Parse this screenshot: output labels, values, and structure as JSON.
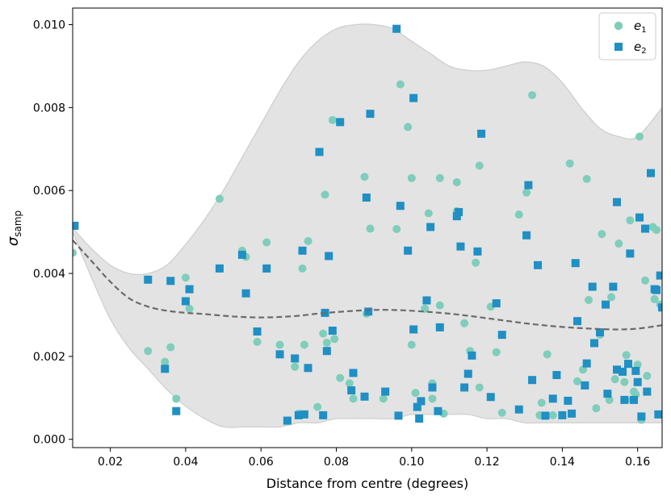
{
  "chart_data": {
    "type": "scatter",
    "xlabel": "Distance from centre (degrees)",
    "ylabel": {
      "main": "σ",
      "sub": "samp"
    },
    "xlim": [
      0.01,
      0.1665
    ],
    "ylim": [
      -0.0002,
      0.0104
    ],
    "xticks": [
      0.02,
      0.04,
      0.06,
      0.08,
      0.1,
      0.12,
      0.14,
      0.16
    ],
    "xtick_labels": [
      "0.02",
      "0.04",
      "0.06",
      "0.08",
      "0.10",
      "0.12",
      "0.14",
      "0.16"
    ],
    "yticks": [
      0.0,
      0.002,
      0.004,
      0.006,
      0.008,
      0.01
    ],
    "ytick_labels": [
      "0.000",
      "0.002",
      "0.004",
      "0.006",
      "0.008",
      "0.010"
    ],
    "legend_position": "top-right",
    "colors": {
      "e1": "#7fcdbb",
      "e2": "#1f8fc4",
      "band_fill": "#e3e3e3",
      "band_edge": "#cfcfcf",
      "trend": "#6b6b6b"
    },
    "band_upper": {
      "x": [
        0.01,
        0.015,
        0.02,
        0.025,
        0.03,
        0.035,
        0.04,
        0.045,
        0.05,
        0.055,
        0.06,
        0.065,
        0.07,
        0.075,
        0.08,
        0.085,
        0.09,
        0.095,
        0.1,
        0.105,
        0.11,
        0.115,
        0.12,
        0.125,
        0.13,
        0.135,
        0.14,
        0.145,
        0.15,
        0.155,
        0.16,
        0.1665
      ],
      "y": [
        0.0051,
        0.0046,
        0.0042,
        0.004,
        0.004,
        0.0042,
        0.0047,
        0.0053,
        0.006,
        0.0068,
        0.0076,
        0.0084,
        0.0091,
        0.0096,
        0.0099,
        0.01,
        0.01,
        0.0099,
        0.0096,
        0.0093,
        0.009,
        0.0089,
        0.0089,
        0.009,
        0.0091,
        0.009,
        0.0086,
        0.008,
        0.0075,
        0.0073,
        0.0073,
        0.008
      ]
    },
    "band_lower": {
      "x": [
        0.01,
        0.015,
        0.02,
        0.025,
        0.03,
        0.035,
        0.04,
        0.045,
        0.05,
        0.055,
        0.06,
        0.065,
        0.07,
        0.075,
        0.08,
        0.085,
        0.09,
        0.095,
        0.1,
        0.105,
        0.11,
        0.115,
        0.12,
        0.125,
        0.13,
        0.135,
        0.14,
        0.145,
        0.15,
        0.155,
        0.16,
        0.1665
      ],
      "y": [
        0.005,
        0.0039,
        0.0029,
        0.0022,
        0.0017,
        0.0012,
        0.0008,
        0.0005,
        0.0003,
        0.0003,
        0.0003,
        0.0003,
        0.0004,
        0.0004,
        0.0005,
        0.0005,
        0.0005,
        0.0005,
        0.0006,
        0.0006,
        0.0006,
        0.0006,
        0.0005,
        0.0005,
        0.0004,
        0.0004,
        0.0004,
        0.0004,
        0.0004,
        0.0004,
        0.0004,
        0.0004
      ]
    },
    "trend": {
      "x": [
        0.01,
        0.015,
        0.02,
        0.025,
        0.03,
        0.035,
        0.04,
        0.045,
        0.05,
        0.055,
        0.06,
        0.065,
        0.07,
        0.075,
        0.08,
        0.085,
        0.09,
        0.095,
        0.1,
        0.105,
        0.11,
        0.115,
        0.12,
        0.125,
        0.13,
        0.135,
        0.14,
        0.145,
        0.15,
        0.155,
        0.16,
        0.1665
      ],
      "y": [
        0.0048,
        0.0043,
        0.0038,
        0.0034,
        0.0032,
        0.0031,
        0.00305,
        0.00302,
        0.00298,
        0.00295,
        0.00294,
        0.00295,
        0.00298,
        0.00303,
        0.00307,
        0.0031,
        0.00312,
        0.00312,
        0.0031,
        0.00307,
        0.00303,
        0.00298,
        0.00292,
        0.00286,
        0.0028,
        0.00275,
        0.00271,
        0.00268,
        0.00266,
        0.00265,
        0.00267,
        0.00275
      ]
    },
    "series": [
      {
        "name": "e",
        "name_sub": "1",
        "marker": "circle",
        "x": [
          0.01,
          0.03,
          0.0345,
          0.036,
          0.0375,
          0.04,
          0.041,
          0.049,
          0.055,
          0.056,
          0.059,
          0.0615,
          0.065,
          0.069,
          0.07,
          0.071,
          0.0715,
          0.0725,
          0.075,
          0.0765,
          0.077,
          0.0775,
          0.079,
          0.0795,
          0.081,
          0.0835,
          0.0845,
          0.0875,
          0.088,
          0.089,
          0.0925,
          0.096,
          0.097,
          0.099,
          0.1,
          0.1,
          0.101,
          0.1035,
          0.1045,
          0.1055,
          0.1055,
          0.1075,
          0.1075,
          0.1085,
          0.112,
          0.112,
          0.114,
          0.1155,
          0.117,
          0.118,
          0.118,
          0.121,
          0.1225,
          0.124,
          0.1285,
          0.1305,
          0.132,
          0.134,
          0.1345,
          0.136,
          0.1375,
          0.142,
          0.144,
          0.144,
          0.1455,
          0.1465,
          0.147,
          0.149,
          0.15,
          0.1505,
          0.1525,
          0.153,
          0.154,
          0.155,
          0.1565,
          0.157,
          0.158,
          0.1585,
          0.159,
          0.1595,
          0.16,
          0.1605,
          0.161,
          0.162,
          0.1625,
          0.164,
          0.1645,
          0.165,
          0.166
        ],
        "y": [
          0.0045,
          0.00213,
          0.00187,
          0.00222,
          0.00098,
          0.0039,
          0.00315,
          0.0058,
          0.00455,
          0.0044,
          0.00235,
          0.00475,
          0.00228,
          0.00175,
          0.00062,
          0.00412,
          0.00228,
          0.00478,
          0.00078,
          0.00255,
          0.0059,
          0.00233,
          0.0077,
          0.00242,
          0.00148,
          0.00135,
          0.00098,
          0.00633,
          0.00303,
          0.00508,
          0.00098,
          0.00507,
          0.00856,
          0.00753,
          0.0063,
          0.00228,
          0.00112,
          0.00315,
          0.00545,
          0.00135,
          0.00098,
          0.0063,
          0.00323,
          0.00062,
          0.0062,
          0.0055,
          0.0028,
          0.00213,
          0.00426,
          0.0066,
          0.00125,
          0.0032,
          0.0021,
          0.00064,
          0.00542,
          0.00595,
          0.0083,
          0.00058,
          0.00088,
          0.00205,
          0.00058,
          0.00665,
          0.00285,
          0.0014,
          0.00168,
          0.00628,
          0.00336,
          0.00075,
          0.00252,
          0.00495,
          0.00095,
          0.00343,
          0.00145,
          0.00472,
          0.00138,
          0.00203,
          0.00528,
          0.00095,
          0.00115,
          0.00108,
          0.0018,
          0.0073,
          0.00047,
          0.00383,
          0.00153,
          0.00512,
          0.00338,
          0.00505,
          0.00325
        ]
      },
      {
        "name": "e",
        "name_sub": "2",
        "marker": "square",
        "x": [
          0.0105,
          0.03,
          0.0345,
          0.036,
          0.0375,
          0.04,
          0.041,
          0.049,
          0.055,
          0.056,
          0.059,
          0.0615,
          0.065,
          0.067,
          0.069,
          0.07,
          0.071,
          0.0715,
          0.0725,
          0.0755,
          0.0765,
          0.077,
          0.0775,
          0.078,
          0.079,
          0.081,
          0.084,
          0.0845,
          0.0875,
          0.088,
          0.0885,
          0.089,
          0.093,
          0.096,
          0.0965,
          0.097,
          0.099,
          0.1005,
          0.1005,
          0.1015,
          0.102,
          0.1025,
          0.104,
          0.105,
          0.1055,
          0.107,
          0.1075,
          0.1125,
          0.112,
          0.113,
          0.114,
          0.115,
          0.116,
          0.1175,
          0.1185,
          0.121,
          0.1225,
          0.124,
          0.1285,
          0.1305,
          0.131,
          0.132,
          0.1335,
          0.1355,
          0.1375,
          0.1385,
          0.14,
          0.1415,
          0.1425,
          0.1435,
          0.144,
          0.146,
          0.1465,
          0.148,
          0.1485,
          0.15,
          0.1515,
          0.152,
          0.1535,
          0.1545,
          0.1545,
          0.156,
          0.1565,
          0.1575,
          0.158,
          0.159,
          0.1595,
          0.16,
          0.1605,
          0.161,
          0.162,
          0.1625,
          0.1635,
          0.1645,
          0.165,
          0.166,
          0.1655,
          0.1665
        ],
        "y": [
          0.00515,
          0.00385,
          0.0017,
          0.00382,
          0.00068,
          0.00333,
          0.00362,
          0.00412,
          0.00445,
          0.00352,
          0.0026,
          0.00412,
          0.00205,
          0.00045,
          0.00195,
          0.00058,
          0.00455,
          0.0006,
          0.00172,
          0.00693,
          0.00058,
          0.00305,
          0.00213,
          0.00442,
          0.00262,
          0.00765,
          0.00118,
          0.0016,
          0.00103,
          0.00583,
          0.00308,
          0.00785,
          0.00115,
          0.0099,
          0.00057,
          0.00563,
          0.00455,
          0.00823,
          0.00265,
          0.00078,
          0.0005,
          0.00092,
          0.00335,
          0.00512,
          0.00125,
          0.00068,
          0.0027,
          0.00548,
          0.00538,
          0.00465,
          0.00125,
          0.00158,
          0.00202,
          0.00453,
          0.00737,
          0.00102,
          0.00328,
          0.00252,
          0.00072,
          0.00492,
          0.00613,
          0.00143,
          0.0042,
          0.00057,
          0.00098,
          0.00155,
          0.00058,
          0.00093,
          0.00062,
          0.00425,
          0.00285,
          0.0013,
          0.00183,
          0.00368,
          0.00232,
          0.00258,
          0.00325,
          0.0011,
          0.00368,
          0.00168,
          0.00572,
          0.00163,
          0.00095,
          0.00182,
          0.00448,
          0.00095,
          0.00165,
          0.00138,
          0.00535,
          0.00055,
          0.00508,
          0.00115,
          0.00642,
          0.00362,
          0.0036,
          0.00395,
          0.0006,
          0.00318
        ]
      }
    ]
  }
}
